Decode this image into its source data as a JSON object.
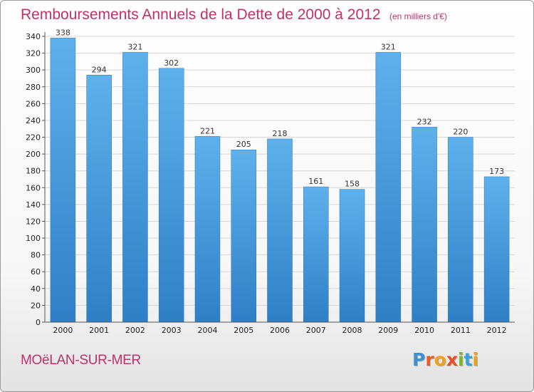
{
  "chart_data": {
    "type": "bar",
    "title": "Remboursements Annuels de la Dette de 2000 à 2012",
    "subtitle": "(en milliers d'€)",
    "categories": [
      "2000",
      "2001",
      "2002",
      "2003",
      "2004",
      "2005",
      "2006",
      "2007",
      "2008",
      "2009",
      "2010",
      "2011",
      "2012"
    ],
    "values": [
      338,
      294,
      321,
      302,
      221,
      205,
      218,
      161,
      158,
      321,
      232,
      220,
      173
    ],
    "ylim": [
      0,
      340
    ],
    "yticks": [
      0,
      20,
      40,
      60,
      80,
      100,
      120,
      140,
      160,
      180,
      200,
      220,
      240,
      260,
      280,
      300,
      320,
      340
    ],
    "grid": true,
    "legend": "none",
    "bar_color": "#4a9fdf"
  },
  "footer": {
    "commune": "MOëLAN-SUR-MER",
    "brand_letters": [
      {
        "ch": "P",
        "color": "#3f8fd3"
      },
      {
        "ch": "r",
        "color": "#e85d2a"
      },
      {
        "ch": "o",
        "color": "#f0a020"
      },
      {
        "ch": "x",
        "color": "#e8502a"
      },
      {
        "ch": "i",
        "color": "#7ab828"
      },
      {
        "ch": "t",
        "color": "#3fa0d8"
      },
      {
        "ch": "i",
        "color": "#e8a020"
      }
    ]
  }
}
